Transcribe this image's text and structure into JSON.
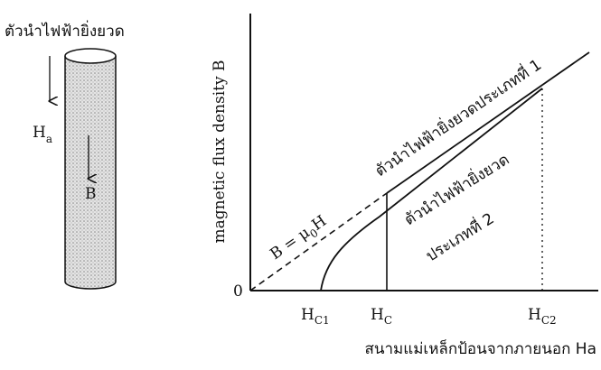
{
  "left_panel": {
    "title": "ตัวนำไฟฟ้ายิ่งยวด",
    "applied_field": {
      "main": "H",
      "sub": "a"
    },
    "internal_field": "B"
  },
  "graph": {
    "y_axis_label": "magnetic flux density B",
    "x_axis_label": "สนามแม่เหล็กป้อนจากภายนอก Ha",
    "origin": "0",
    "line_label": {
      "main": "B = μ",
      "sub": "0",
      "tail": "H"
    },
    "type1_label": "ตัวนำไฟฟ้ายิ่งยวดประเภทที่ 1",
    "type2_label": [
      "ตัวนำไฟฟ้ายิ่งยวด",
      "ประเภทที่ 2"
    ],
    "x_markers": [
      {
        "main": "H",
        "sub": "C1"
      },
      {
        "main": "H",
        "sub": "C"
      },
      {
        "main": "H",
        "sub": "C2"
      }
    ]
  }
}
